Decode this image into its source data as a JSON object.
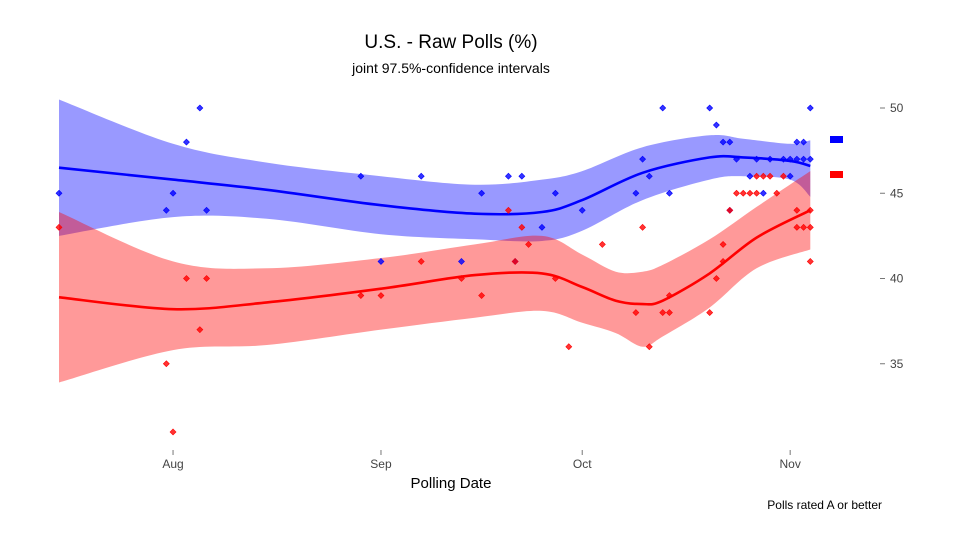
{
  "chart_data": {
    "type": "scatter",
    "title": "U.S. - Raw Polls (%)",
    "subtitle": "joint 97.5%-confidence intervals",
    "xlabel": "Polling Date",
    "ylabel": "",
    "note": "Polls rated A or better",
    "x_range": [
      "2020-07-15",
      "2020-11-05"
    ],
    "ylim": [
      30,
      50
    ],
    "x_ticks": [
      {
        "label": "Aug",
        "date": "2020-08-01"
      },
      {
        "label": "Sep",
        "date": "2020-09-01"
      },
      {
        "label": "Oct",
        "date": "2020-10-01"
      },
      {
        "label": "Nov",
        "date": "2020-11-01"
      }
    ],
    "y_ticks": [
      35,
      40,
      45,
      50
    ],
    "grid": false,
    "legend": "right",
    "series": [
      {
        "color": "#0000ff",
        "band_color": "#9898ff",
        "points": [
          [
            "2020-07-15",
            45
          ],
          [
            "2020-07-31",
            44
          ],
          [
            "2020-08-01",
            45
          ],
          [
            "2020-08-03",
            48
          ],
          [
            "2020-08-05",
            50
          ],
          [
            "2020-08-06",
            44
          ],
          [
            "2020-08-29",
            46
          ],
          [
            "2020-09-01",
            41
          ],
          [
            "2020-09-07",
            46
          ],
          [
            "2020-09-13",
            41
          ],
          [
            "2020-09-16",
            45
          ],
          [
            "2020-09-20",
            46
          ],
          [
            "2020-09-21",
            41
          ],
          [
            "2020-09-22",
            46
          ],
          [
            "2020-09-25",
            43
          ],
          [
            "2020-09-27",
            45
          ],
          [
            "2020-10-01",
            44
          ],
          [
            "2020-10-09",
            45
          ],
          [
            "2020-10-10",
            47
          ],
          [
            "2020-10-11",
            46
          ],
          [
            "2020-10-13",
            50
          ],
          [
            "2020-10-14",
            45
          ],
          [
            "2020-10-20",
            50
          ],
          [
            "2020-10-21",
            49
          ],
          [
            "2020-10-22",
            48
          ],
          [
            "2020-10-23",
            48
          ],
          [
            "2020-10-23",
            44
          ],
          [
            "2020-10-24",
            47
          ],
          [
            "2020-10-26",
            46
          ],
          [
            "2020-10-27",
            47
          ],
          [
            "2020-10-28",
            45
          ],
          [
            "2020-10-29",
            47
          ],
          [
            "2020-10-31",
            47
          ],
          [
            "2020-11-01",
            47
          ],
          [
            "2020-11-01",
            46
          ],
          [
            "2020-11-02",
            48
          ],
          [
            "2020-11-02",
            47
          ],
          [
            "2020-11-03",
            47
          ],
          [
            "2020-11-03",
            48
          ],
          [
            "2020-11-04",
            50
          ],
          [
            "2020-11-04",
            47
          ]
        ],
        "trend": [
          [
            "2020-07-15",
            46.5
          ],
          [
            "2020-08-01",
            45.8
          ],
          [
            "2020-08-15",
            45.2
          ],
          [
            "2020-09-01",
            44.3
          ],
          [
            "2020-09-15",
            43.8
          ],
          [
            "2020-09-25",
            43.9
          ],
          [
            "2020-10-01",
            44.6
          ],
          [
            "2020-10-10",
            46.2
          ],
          [
            "2020-10-20",
            47.1
          ],
          [
            "2020-10-25",
            47.1
          ],
          [
            "2020-11-01",
            46.9
          ],
          [
            "2020-11-04",
            46.6
          ]
        ],
        "band_upper": [
          [
            "2020-07-15",
            50.5
          ],
          [
            "2020-08-01",
            47.9
          ],
          [
            "2020-08-15",
            46.8
          ],
          [
            "2020-09-01",
            46.0
          ],
          [
            "2020-09-15",
            45.5
          ],
          [
            "2020-09-25",
            45.8
          ],
          [
            "2020-10-01",
            46.3
          ],
          [
            "2020-10-10",
            47.7
          ],
          [
            "2020-10-20",
            48.4
          ],
          [
            "2020-10-25",
            48.2
          ],
          [
            "2020-11-01",
            47.9
          ],
          [
            "2020-11-04",
            48.1
          ]
        ],
        "band_lower": [
          [
            "2020-07-15",
            42.5
          ],
          [
            "2020-08-01",
            43.6
          ],
          [
            "2020-08-15",
            43.5
          ],
          [
            "2020-09-01",
            42.6
          ],
          [
            "2020-09-15",
            42.3
          ],
          [
            "2020-09-25",
            42.2
          ],
          [
            "2020-10-01",
            42.8
          ],
          [
            "2020-10-10",
            44.6
          ],
          [
            "2020-10-20",
            45.8
          ],
          [
            "2020-10-25",
            46.0
          ],
          [
            "2020-11-01",
            45.8
          ],
          [
            "2020-11-04",
            44.8
          ]
        ]
      },
      {
        "color": "#ff0000",
        "band_color": "#ff9494",
        "points": [
          [
            "2020-07-15",
            43
          ],
          [
            "2020-07-31",
            35
          ],
          [
            "2020-08-01",
            31
          ],
          [
            "2020-08-03",
            40
          ],
          [
            "2020-08-05",
            37
          ],
          [
            "2020-08-06",
            40
          ],
          [
            "2020-08-29",
            39
          ],
          [
            "2020-09-01",
            39
          ],
          [
            "2020-09-07",
            41
          ],
          [
            "2020-09-13",
            40
          ],
          [
            "2020-09-16",
            39
          ],
          [
            "2020-09-20",
            44
          ],
          [
            "2020-09-21",
            41
          ],
          [
            "2020-09-22",
            43
          ],
          [
            "2020-09-23",
            42
          ],
          [
            "2020-09-27",
            40
          ],
          [
            "2020-09-29",
            36
          ],
          [
            "2020-10-04",
            42
          ],
          [
            "2020-10-09",
            38
          ],
          [
            "2020-10-10",
            43
          ],
          [
            "2020-10-11",
            36
          ],
          [
            "2020-10-13",
            38
          ],
          [
            "2020-10-14",
            39
          ],
          [
            "2020-10-14",
            38
          ],
          [
            "2020-10-20",
            38
          ],
          [
            "2020-10-21",
            40
          ],
          [
            "2020-10-22",
            41
          ],
          [
            "2020-10-22",
            42
          ],
          [
            "2020-10-23",
            44
          ],
          [
            "2020-10-24",
            45
          ],
          [
            "2020-10-25",
            45
          ],
          [
            "2020-10-26",
            45
          ],
          [
            "2020-10-27",
            45
          ],
          [
            "2020-10-27",
            46
          ],
          [
            "2020-10-28",
            46
          ],
          [
            "2020-10-29",
            46
          ],
          [
            "2020-10-30",
            45
          ],
          [
            "2020-10-31",
            46
          ],
          [
            "2020-11-02",
            44
          ],
          [
            "2020-11-02",
            43
          ],
          [
            "2020-11-03",
            43
          ],
          [
            "2020-11-04",
            43
          ],
          [
            "2020-11-04",
            44
          ],
          [
            "2020-11-04",
            41
          ]
        ],
        "trend": [
          [
            "2020-07-15",
            38.9
          ],
          [
            "2020-08-01",
            38.2
          ],
          [
            "2020-08-15",
            38.6
          ],
          [
            "2020-09-01",
            39.4
          ],
          [
            "2020-09-15",
            40.2
          ],
          [
            "2020-09-25",
            40.3
          ],
          [
            "2020-10-01",
            39.5
          ],
          [
            "2020-10-06",
            38.7
          ],
          [
            "2020-10-10",
            38.5
          ],
          [
            "2020-10-13",
            38.7
          ],
          [
            "2020-10-20",
            40.3
          ],
          [
            "2020-10-27",
            42.4
          ],
          [
            "2020-11-04",
            44.0
          ]
        ],
        "band_upper": [
          [
            "2020-07-15",
            43.9
          ],
          [
            "2020-08-01",
            41.0
          ],
          [
            "2020-08-15",
            40.6
          ],
          [
            "2020-09-01",
            41.2
          ],
          [
            "2020-09-15",
            42.0
          ],
          [
            "2020-09-25",
            42.5
          ],
          [
            "2020-10-01",
            41.4
          ],
          [
            "2020-10-06",
            40.4
          ],
          [
            "2020-10-10",
            40.4
          ],
          [
            "2020-10-13",
            40.8
          ],
          [
            "2020-10-20",
            42.3
          ],
          [
            "2020-10-27",
            44.2
          ],
          [
            "2020-11-04",
            46.3
          ]
        ],
        "band_lower": [
          [
            "2020-07-15",
            33.9
          ],
          [
            "2020-08-01",
            35.8
          ],
          [
            "2020-08-15",
            36.1
          ],
          [
            "2020-09-01",
            37.0
          ],
          [
            "2020-09-15",
            37.7
          ],
          [
            "2020-09-25",
            38.1
          ],
          [
            "2020-10-01",
            37.4
          ],
          [
            "2020-10-06",
            36.8
          ],
          [
            "2020-10-10",
            36.0
          ],
          [
            "2020-10-13",
            36.6
          ],
          [
            "2020-10-20",
            38.3
          ],
          [
            "2020-10-27",
            40.6
          ],
          [
            "2020-11-04",
            41.7
          ]
        ]
      }
    ]
  }
}
